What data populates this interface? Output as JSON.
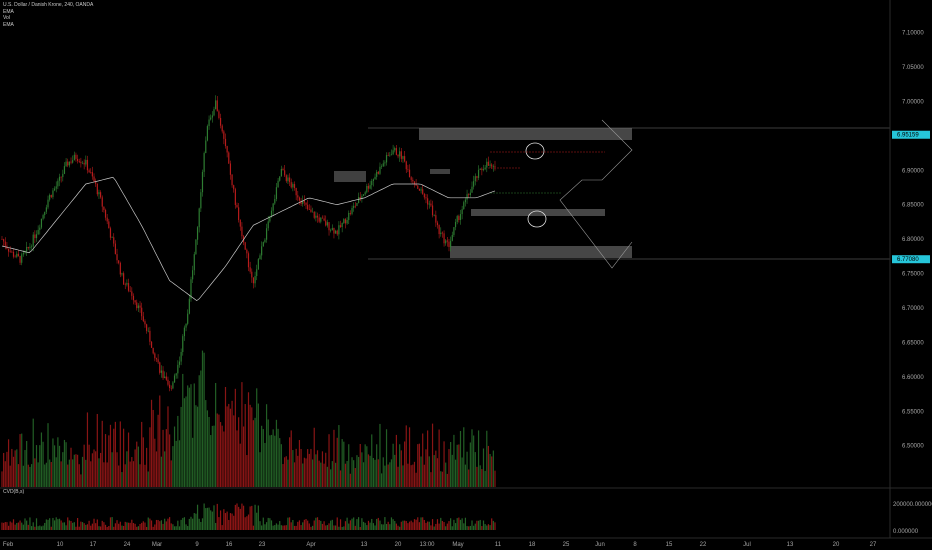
{
  "legend": {
    "title": "U.S. Dollar / Danish Krone, 240, OANDA",
    "lines": [
      "EMA",
      "Vol",
      "EMA"
    ]
  },
  "sub_pane": {
    "label": "CVD(B,s)"
  },
  "colors": {
    "background": "#000000",
    "up": "#2e7d32",
    "down": "#b71c1c",
    "ema": "#c8c8c8",
    "zone": "#808080",
    "tag": "#26c6da"
  },
  "chart_data": {
    "type": "candlestick",
    "title": "U.S. Dollar / Danish Krone, 240, OANDA",
    "price_axis": {
      "ylim": [
        6.44,
        7.14
      ],
      "ticks": [
        "7.10000",
        "7.05000",
        "7.00000",
        "6.95000",
        "6.90000",
        "6.85000",
        "6.80000",
        "6.75000",
        "6.70000",
        "6.65000",
        "6.60000",
        "6.55000",
        "6.50000"
      ],
      "tick_values": [
        7.1,
        7.05,
        7.0,
        6.95,
        6.9,
        6.85,
        6.8,
        6.75,
        6.7,
        6.65,
        6.6,
        6.55,
        6.5
      ]
    },
    "price_tags": [
      {
        "label": "6.95159",
        "value": 6.95159
      },
      {
        "label": "6.77080",
        "value": 6.7708
      }
    ],
    "sub_axis": {
      "ticks": [
        "200000.000000",
        "0.000000"
      ]
    },
    "x_axis": {
      "ticks": [
        "Feb",
        "10",
        "17",
        "24",
        "Mar",
        "9",
        "16",
        "23",
        "Apr",
        "13",
        "20",
        "13:00",
        "May",
        "11",
        "18",
        "25",
        "Jun",
        "8",
        "15",
        "22",
        "Jul",
        "13",
        "20",
        "27"
      ]
    },
    "price_path": [
      [
        0,
        6.8
      ],
      [
        1,
        6.78
      ],
      [
        2,
        6.77
      ],
      [
        3,
        6.79
      ],
      [
        4,
        6.82
      ],
      [
        5,
        6.86
      ],
      [
        6,
        6.88
      ],
      [
        7,
        6.91
      ],
      [
        8,
        6.92
      ],
      [
        9,
        6.91
      ],
      [
        10,
        6.88
      ],
      [
        11,
        6.84
      ],
      [
        12,
        6.79
      ],
      [
        13,
        6.74
      ],
      [
        14,
        6.72
      ],
      [
        15,
        6.69
      ],
      [
        16,
        6.65
      ],
      [
        17,
        6.61
      ],
      [
        18,
        6.58
      ],
      [
        19,
        6.62
      ],
      [
        20,
        6.7
      ],
      [
        21,
        6.82
      ],
      [
        22,
        6.96
      ],
      [
        23,
        7.0
      ],
      [
        24,
        6.94
      ],
      [
        25,
        6.86
      ],
      [
        26,
        6.79
      ],
      [
        27,
        6.74
      ],
      [
        28,
        6.79
      ],
      [
        29,
        6.84
      ],
      [
        30,
        6.9
      ],
      [
        31,
        6.88
      ],
      [
        32,
        6.86
      ],
      [
        33,
        6.84
      ],
      [
        34,
        6.83
      ],
      [
        35,
        6.82
      ],
      [
        36,
        6.81
      ],
      [
        37,
        6.83
      ],
      [
        38,
        6.85
      ],
      [
        39,
        6.87
      ],
      [
        40,
        6.89
      ],
      [
        41,
        6.91
      ],
      [
        42,
        6.93
      ],
      [
        43,
        6.92
      ],
      [
        44,
        6.89
      ],
      [
        45,
        6.87
      ],
      [
        46,
        6.85
      ],
      [
        47,
        6.81
      ],
      [
        48,
        6.79
      ],
      [
        49,
        6.83
      ],
      [
        50,
        6.86
      ],
      [
        51,
        6.89
      ],
      [
        52,
        6.91
      ],
      [
        53,
        6.9
      ]
    ],
    "ema_path": [
      [
        0,
        6.79
      ],
      [
        3,
        6.78
      ],
      [
        6,
        6.83
      ],
      [
        9,
        6.88
      ],
      [
        12,
        6.89
      ],
      [
        15,
        6.82
      ],
      [
        18,
        6.74
      ],
      [
        21,
        6.71
      ],
      [
        24,
        6.76
      ],
      [
        27,
        6.82
      ],
      [
        30,
        6.84
      ],
      [
        33,
        6.86
      ],
      [
        36,
        6.85
      ],
      [
        39,
        6.86
      ],
      [
        42,
        6.88
      ],
      [
        45,
        6.88
      ],
      [
        48,
        6.86
      ],
      [
        51,
        6.86
      ],
      [
        53,
        6.87
      ]
    ]
  }
}
